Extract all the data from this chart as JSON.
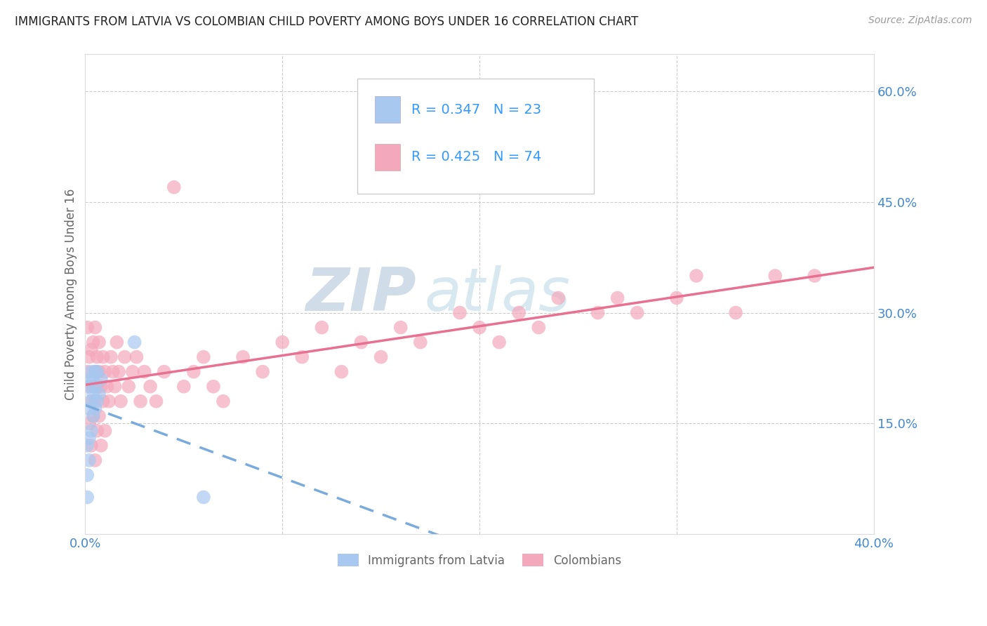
{
  "title": "IMMIGRANTS FROM LATVIA VS COLOMBIAN CHILD POVERTY AMONG BOYS UNDER 16 CORRELATION CHART",
  "source": "Source: ZipAtlas.com",
  "ylabel": "Child Poverty Among Boys Under 16",
  "xlim": [
    0.0,
    0.4
  ],
  "ylim": [
    0.0,
    0.65
  ],
  "x_ticks": [
    0.0,
    0.1,
    0.2,
    0.3,
    0.4
  ],
  "x_tick_labels": [
    "0.0%",
    "",
    "",
    "",
    "40.0%"
  ],
  "y_ticks_right": [
    0.0,
    0.15,
    0.3,
    0.45,
    0.6
  ],
  "y_tick_labels_right": [
    "",
    "15.0%",
    "30.0%",
    "45.0%",
    "60.0%"
  ],
  "grid_color": "#cccccc",
  "background_color": "#ffffff",
  "watermark1": "ZIP",
  "watermark2": "atlas",
  "legend_r1": "R = 0.347",
  "legend_n1": "N = 23",
  "legend_r2": "R = 0.425",
  "legend_n2": "N = 74",
  "legend_label1": "Immigrants from Latvia",
  "legend_label2": "Colombians",
  "color_latvian": "#a8c8f0",
  "color_colombian": "#f4a8bc",
  "trendline_latvian_color": "#7aabdc",
  "trendline_colombian_color": "#e87090",
  "latvian_x": [
    0.001,
    0.001,
    0.001,
    0.002,
    0.002,
    0.002,
    0.002,
    0.003,
    0.003,
    0.003,
    0.003,
    0.004,
    0.004,
    0.004,
    0.005,
    0.005,
    0.005,
    0.006,
    0.006,
    0.007,
    0.008,
    0.025,
    0.06
  ],
  "latvian_y": [
    0.05,
    0.08,
    0.12,
    0.1,
    0.13,
    0.17,
    0.2,
    0.14,
    0.18,
    0.21,
    0.22,
    0.16,
    0.19,
    0.21,
    0.17,
    0.2,
    0.22,
    0.18,
    0.22,
    0.19,
    0.21,
    0.26,
    0.05
  ],
  "colombian_x": [
    0.001,
    0.001,
    0.002,
    0.002,
    0.002,
    0.003,
    0.003,
    0.003,
    0.004,
    0.004,
    0.004,
    0.005,
    0.005,
    0.005,
    0.005,
    0.006,
    0.006,
    0.006,
    0.007,
    0.007,
    0.007,
    0.008,
    0.008,
    0.009,
    0.009,
    0.01,
    0.01,
    0.011,
    0.012,
    0.013,
    0.014,
    0.015,
    0.016,
    0.017,
    0.018,
    0.02,
    0.022,
    0.024,
    0.026,
    0.028,
    0.03,
    0.033,
    0.036,
    0.04,
    0.045,
    0.05,
    0.055,
    0.06,
    0.065,
    0.07,
    0.08,
    0.09,
    0.1,
    0.11,
    0.12,
    0.13,
    0.14,
    0.15,
    0.16,
    0.17,
    0.19,
    0.2,
    0.21,
    0.22,
    0.23,
    0.24,
    0.26,
    0.27,
    0.28,
    0.3,
    0.31,
    0.33,
    0.35,
    0.37
  ],
  "colombian_y": [
    0.22,
    0.28,
    0.15,
    0.2,
    0.24,
    0.12,
    0.18,
    0.25,
    0.16,
    0.2,
    0.26,
    0.1,
    0.18,
    0.22,
    0.28,
    0.14,
    0.2,
    0.24,
    0.16,
    0.22,
    0.26,
    0.12,
    0.2,
    0.18,
    0.24,
    0.14,
    0.22,
    0.2,
    0.18,
    0.24,
    0.22,
    0.2,
    0.26,
    0.22,
    0.18,
    0.24,
    0.2,
    0.22,
    0.24,
    0.18,
    0.22,
    0.2,
    0.18,
    0.22,
    0.47,
    0.2,
    0.22,
    0.24,
    0.2,
    0.18,
    0.24,
    0.22,
    0.26,
    0.24,
    0.28,
    0.22,
    0.26,
    0.24,
    0.28,
    0.26,
    0.3,
    0.28,
    0.26,
    0.3,
    0.28,
    0.32,
    0.3,
    0.32,
    0.3,
    0.32,
    0.35,
    0.3,
    0.35,
    0.35
  ]
}
